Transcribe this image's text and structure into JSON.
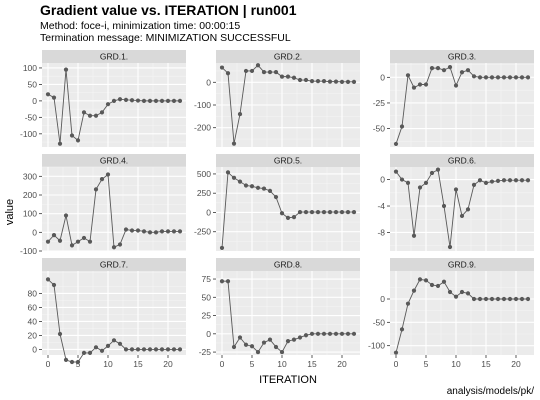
{
  "chart_data": {
    "type": "line",
    "title": "Gradient value vs. ITERATION | run001",
    "subtitle_lines": [
      "Method: foce-i, minimization time: 00:00:15",
      "Termination message: MINIMIZATION SUCCESSFUL"
    ],
    "caption": "analysis/models/pk/",
    "xlabel": "ITERATION",
    "ylabel": "value",
    "xlim": [
      -1,
      23
    ],
    "x_ticks": [
      0,
      5,
      10,
      15,
      20
    ],
    "x": [
      0,
      1,
      2,
      3,
      4,
      5,
      6,
      7,
      8,
      9,
      10,
      11,
      12,
      13,
      14,
      15,
      16,
      17,
      18,
      19,
      20,
      21,
      22
    ],
    "panels": [
      {
        "name": "GRD.1.",
        "ylim": [
          -140,
          115
        ],
        "y_ticks": [
          -100,
          -50,
          0,
          50,
          100
        ],
        "values": [
          20,
          10,
          -130,
          95,
          -105,
          -120,
          -35,
          -45,
          -45,
          -35,
          -10,
          0,
          5,
          3,
          2,
          1,
          0,
          0,
          0,
          0,
          0,
          0,
          0
        ]
      },
      {
        "name": "GRD.2.",
        "ylim": [
          -285,
          85
        ],
        "y_ticks": [
          -200,
          -100,
          0
        ],
        "values": [
          65,
          40,
          -270,
          -140,
          50,
          50,
          75,
          45,
          45,
          45,
          25,
          25,
          20,
          10,
          10,
          5,
          5,
          5,
          3,
          3,
          2,
          2,
          2
        ]
      },
      {
        "name": "GRD.3.",
        "ylim": [
          -68,
          14
        ],
        "y_ticks": [
          -50,
          -25,
          0
        ],
        "values": [
          -65,
          -48,
          2,
          -10,
          -7,
          -7,
          9,
          9,
          7,
          10,
          -8,
          5,
          7,
          1,
          0,
          0,
          0,
          0,
          0,
          0,
          0,
          0,
          0
        ]
      },
      {
        "name": "GRD.4.",
        "ylim": [
          -100,
          350
        ],
        "y_ticks": [
          -100,
          0,
          100,
          200,
          300
        ],
        "values": [
          -50,
          -15,
          -45,
          90,
          -70,
          -50,
          -30,
          -50,
          230,
          285,
          310,
          -80,
          -65,
          15,
          10,
          10,
          5,
          0,
          0,
          5,
          5,
          5,
          5
        ]
      },
      {
        "name": "GRD.5.",
        "ylim": [
          -500,
          590
        ],
        "y_ticks": [
          -250,
          0,
          250,
          500
        ],
        "values": [
          -460,
          520,
          450,
          400,
          350,
          340,
          320,
          310,
          280,
          200,
          -10,
          -70,
          -60,
          5,
          5,
          5,
          5,
          5,
          5,
          5,
          5,
          5,
          5
        ]
      },
      {
        "name": "GRD.6.",
        "ylim": [
          -10.8,
          1.9
        ],
        "y_ticks": [
          -8,
          -4,
          0
        ],
        "values": [
          1.2,
          0.0,
          -0.5,
          -8.5,
          -1.2,
          -0.5,
          1.0,
          1.5,
          -4.0,
          -10.2,
          -1.5,
          -5.5,
          -4.5,
          -0.8,
          -0.1,
          -0.5,
          -0.3,
          -0.2,
          -0.1,
          -0.1,
          -0.1,
          -0.1,
          -0.1
        ]
      },
      {
        "name": "GRD.7.",
        "ylim": [
          -8,
          112
        ],
        "y_ticks": [
          0,
          20,
          40,
          60,
          80
        ],
        "values": [
          100,
          92,
          22,
          -15,
          -18,
          -18,
          -5,
          -5,
          3,
          -2,
          5,
          13,
          8,
          0,
          0,
          0,
          0,
          0,
          0,
          0,
          0,
          0,
          0
        ]
      },
      {
        "name": "GRD.8.",
        "ylim": [
          -29,
          86
        ],
        "y_ticks": [
          -25,
          0,
          25,
          50,
          75
        ],
        "values": [
          72,
          72,
          -18,
          -5,
          -15,
          -17,
          -25,
          -12,
          -8,
          -18,
          -25,
          -10,
          -8,
          -5,
          -2,
          0,
          0,
          0,
          0,
          0,
          0,
          0,
          0
        ]
      },
      {
        "name": "GRD.9.",
        "ylim": [
          -120,
          60
        ],
        "y_ticks": [
          -100,
          -50,
          0
        ],
        "values": [
          -115,
          -65,
          -10,
          18,
          42,
          40,
          30,
          28,
          37,
          15,
          5,
          15,
          12,
          0,
          0,
          0,
          0,
          0,
          0,
          0,
          0,
          0,
          0
        ]
      }
    ]
  }
}
